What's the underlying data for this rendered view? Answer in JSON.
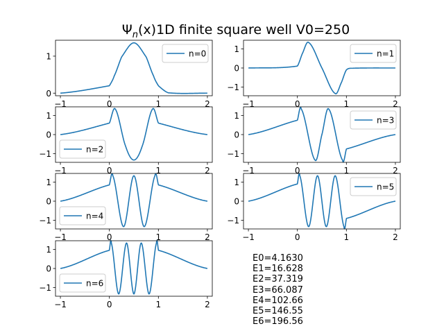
{
  "chart_data": {
    "type": "line",
    "title": "Ψ_n(x)1D finite square well V0=250",
    "title_parts": {
      "symbol": "Ψ",
      "subscript": "n",
      "args": "(x)",
      "rest": "1D finite square well V0=250"
    },
    "line_color": "#1f77b4",
    "subplots": [
      {
        "legend": "n=0",
        "legend_loc": "upper right",
        "xlim": [
          -1.1,
          2.1
        ],
        "ylim": [
          -0.07,
          1.43
        ],
        "yticks": [
          0,
          1
        ],
        "ytick_labels": [
          "0",
          "1"
        ],
        "xticks": [
          -1,
          0,
          1,
          2
        ],
        "xtick_labels": [
          "−1",
          "0",
          "1",
          "2"
        ],
        "series": {
          "x": [
            -1.0,
            0.0,
            0.1,
            0.25,
            0.5,
            0.75,
            0.9,
            1.0,
            1.2,
            2.0
          ],
          "y": [
            0.0,
            0.2,
            0.47,
            0.98,
            1.36,
            0.98,
            0.47,
            0.2,
            0.01,
            0.0
          ]
        }
      },
      {
        "legend": "n=1",
        "legend_loc": "upper right",
        "xlim": [
          -1.1,
          2.1
        ],
        "ylim": [
          -1.45,
          1.45
        ],
        "yticks": [
          -1,
          0,
          1
        ],
        "ytick_labels": [
          "−1",
          "0",
          "1"
        ],
        "xticks": [
          -1,
          0,
          1,
          2
        ],
        "xtick_labels": [
          "−1",
          "0",
          "1",
          "2"
        ],
        "series": {
          "x": [
            -1.0,
            0.0,
            0.1,
            0.23,
            0.5,
            0.77,
            0.9,
            1.0,
            1.15,
            2.0
          ],
          "y": [
            0.0,
            0.1,
            0.75,
            1.33,
            0.0,
            -1.33,
            -0.75,
            -0.1,
            -0.01,
            0.0
          ]
        }
      },
      {
        "legend": "n=2",
        "legend_loc": "lower left",
        "xlim": [
          -1.1,
          2.1
        ],
        "ylim": [
          -1.45,
          1.45
        ],
        "yticks": [
          -1,
          0,
          1
        ],
        "ytick_labels": [
          "−1",
          "0",
          "1"
        ],
        "xticks": [
          -1,
          0,
          1,
          2
        ],
        "xtick_labels": [
          "−1",
          "0",
          "1",
          "2"
        ],
        "series": {
          "x": [
            -1.0,
            0.0,
            0.12,
            0.33,
            0.5,
            0.67,
            0.88,
            1.0,
            2.0
          ],
          "y": [
            0.0,
            0.6,
            1.33,
            -0.6,
            -1.33,
            -0.6,
            1.33,
            0.6,
            0.0
          ]
        }
      },
      {
        "legend": "n=3",
        "legend_loc": "upper right",
        "xlim": [
          -1.1,
          2.1
        ],
        "ylim": [
          -1.45,
          1.45
        ],
        "yticks": [
          -1,
          0,
          1
        ],
        "ytick_labels": [
          "−1",
          "0",
          "1"
        ],
        "xticks": [
          -1,
          0,
          1,
          2
        ],
        "xtick_labels": [
          "−1",
          "0",
          "1",
          "2"
        ],
        "series": {
          "x": [
            -1.0,
            0.0,
            0.08,
            0.36,
            0.5,
            0.64,
            0.92,
            1.0,
            2.0
          ],
          "y": [
            0.0,
            0.75,
            1.33,
            -1.33,
            0.0,
            1.33,
            -1.33,
            -0.75,
            0.0
          ]
        }
      },
      {
        "legend": "n=4",
        "legend_loc": "lower left",
        "xlim": [
          -1.1,
          2.1
        ],
        "ylim": [
          -1.45,
          1.45
        ],
        "yticks": [
          -1,
          0,
          1
        ],
        "ytick_labels": [
          "−1",
          "0",
          "1"
        ],
        "xticks": [
          -1,
          0,
          1,
          2
        ],
        "xtick_labels": [
          "−1",
          "0",
          "1",
          "2"
        ],
        "series": {
          "x": [
            -1.0,
            0.0,
            0.07,
            0.29,
            0.5,
            0.71,
            0.93,
            1.0,
            2.0
          ],
          "y": [
            0.0,
            0.85,
            1.33,
            -1.33,
            1.33,
            -1.33,
            1.33,
            0.85,
            0.0
          ]
        }
      },
      {
        "legend": "n=5",
        "legend_loc": "upper right",
        "xlim": [
          -1.1,
          2.1
        ],
        "ylim": [
          -1.45,
          1.45
        ],
        "yticks": [
          -1,
          0,
          1
        ],
        "ytick_labels": [
          "−1",
          "0",
          "1"
        ],
        "xticks": [
          -1,
          0,
          1,
          2
        ],
        "xtick_labels": [
          "−1",
          "0",
          "1",
          "2"
        ],
        "series": {
          "x": [
            -1.0,
            0.0,
            0.05,
            0.23,
            0.41,
            0.59,
            0.77,
            0.95,
            1.0,
            2.0
          ],
          "y": [
            0.0,
            0.9,
            1.33,
            -1.33,
            1.33,
            -1.33,
            1.33,
            -1.33,
            -0.9,
            0.0
          ]
        }
      },
      {
        "legend": "n=6",
        "legend_loc": "lower left",
        "xlim": [
          -1.1,
          2.1
        ],
        "ylim": [
          -1.45,
          1.45
        ],
        "yticks": [
          -1,
          0,
          1
        ],
        "ytick_labels": [
          "−1",
          "0",
          "1"
        ],
        "xticks": [
          -1,
          0,
          1,
          2
        ],
        "xtick_labels": [
          "−1",
          "0",
          "1",
          "2"
        ],
        "series": {
          "x": [
            -1.0,
            0.0,
            0.04,
            0.19,
            0.35,
            0.5,
            0.65,
            0.81,
            0.96,
            1.0,
            2.0
          ],
          "y": [
            0.0,
            0.95,
            1.33,
            -1.33,
            1.33,
            -1.33,
            1.33,
            -1.33,
            1.33,
            0.95,
            0.0
          ]
        }
      }
    ],
    "energies": [
      "E0=4.1630",
      "E1=16.628",
      "E2=37.319",
      "E3=66.087",
      "E4=102.66",
      "E5=146.55",
      "E6=196.56"
    ]
  }
}
